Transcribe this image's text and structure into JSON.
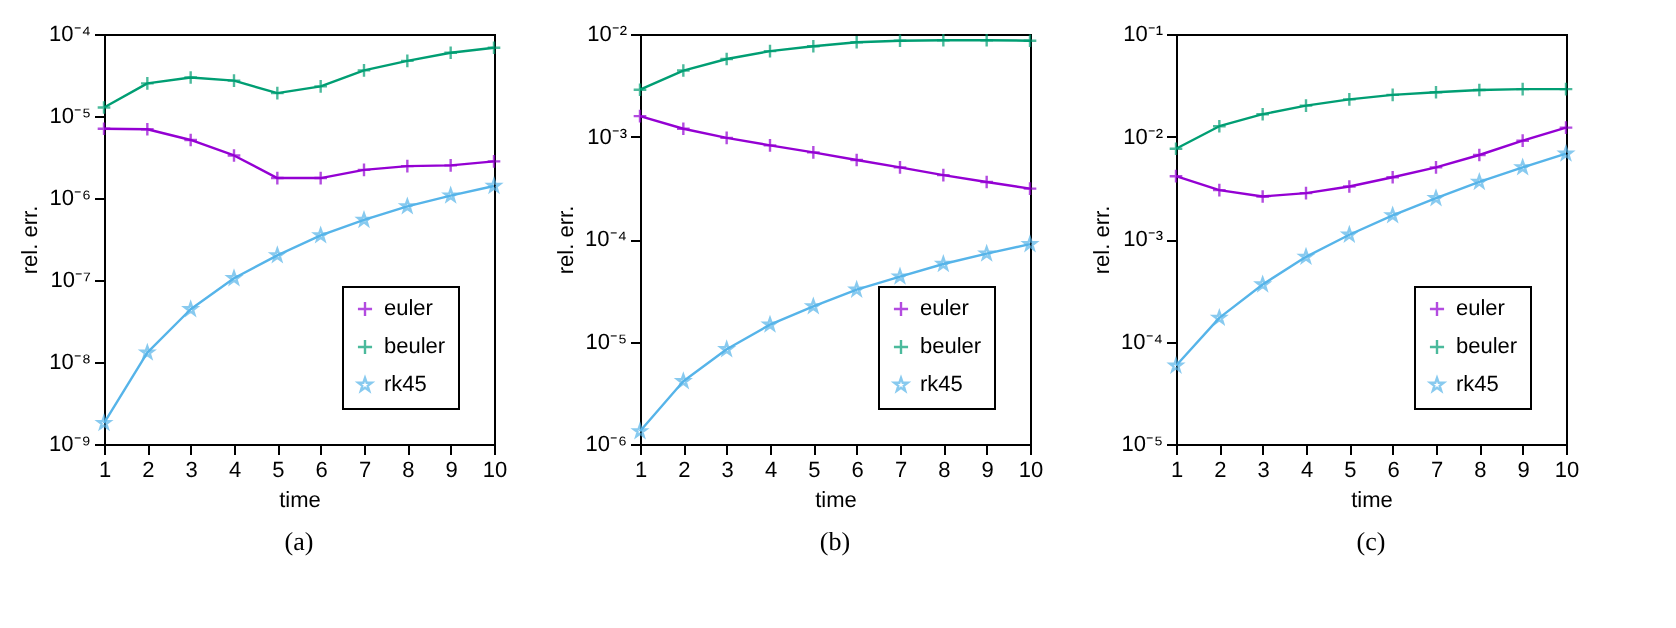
{
  "chart_data": [
    {
      "type": "line",
      "xlabel": "time",
      "ylabel": "rel. err.",
      "log": "y",
      "legend": "bottom right",
      "grid": false,
      "line_style": "solid",
      "annotations": [
        "(a)"
      ],
      "x": [
        1,
        2,
        3,
        4,
        5,
        6,
        7,
        8,
        9,
        10
      ],
      "xlim": [
        1,
        10
      ],
      "xticks": [
        1,
        2,
        3,
        4,
        5,
        6,
        7,
        8,
        9,
        10
      ],
      "ylim": [
        1e-09,
        0.0001
      ],
      "yticks": [
        {
          "value": 1e-09,
          "label": "10⁻⁹"
        },
        {
          "value": 1e-08,
          "label": "10⁻⁸"
        },
        {
          "value": 1e-07,
          "label": "10⁻⁷"
        },
        {
          "value": 1e-06,
          "label": "10⁻⁶"
        },
        {
          "value": 1e-05,
          "label": "10⁻⁵"
        },
        {
          "value": 0.0001,
          "label": "10⁻⁴"
        }
      ],
      "series": [
        {
          "name": "euler",
          "color": "#9400d3",
          "marker": "cross",
          "values": [
            7e-06,
            6.9e-06,
            5.1e-06,
            3.3e-06,
            1.75e-06,
            1.75e-06,
            2.2e-06,
            2.45e-06,
            2.5e-06,
            2.8e-06
          ]
        },
        {
          "name": "beuler",
          "color": "#009e73",
          "marker": "cross",
          "values": [
            1.27e-05,
            2.5e-05,
            2.95e-05,
            2.7e-05,
            1.9e-05,
            2.3e-05,
            3.6e-05,
            4.7e-05,
            5.9e-05,
            6.8e-05
          ]
        },
        {
          "name": "rk45",
          "color": "#56b4e9",
          "marker": "star",
          "values": [
            1.8e-09,
            1.3e-08,
            4.4e-08,
            1.05e-07,
            2e-07,
            3.5e-07,
            5.4e-07,
            7.9e-07,
            1.07e-06,
            1.4e-06
          ]
        }
      ]
    },
    {
      "type": "line",
      "xlabel": "time",
      "ylabel": "rel. err.",
      "log": "y",
      "legend": "bottom right",
      "grid": false,
      "line_style": "solid",
      "annotations": [
        "(b)"
      ],
      "x": [
        1,
        2,
        3,
        4,
        5,
        6,
        7,
        8,
        9,
        10
      ],
      "xlim": [
        1,
        10
      ],
      "xticks": [
        1,
        2,
        3,
        4,
        5,
        6,
        7,
        8,
        9,
        10
      ],
      "ylim": [
        1e-06,
        0.01
      ],
      "yticks": [
        {
          "value": 1e-06,
          "label": "10⁻⁶"
        },
        {
          "value": 1e-05,
          "label": "10⁻⁵"
        },
        {
          "value": 0.0001,
          "label": "10⁻⁴"
        },
        {
          "value": 0.001,
          "label": "10⁻³"
        },
        {
          "value": 0.01,
          "label": "10⁻²"
        }
      ],
      "series": [
        {
          "name": "euler",
          "color": "#9400d3",
          "marker": "cross",
          "values": [
            0.00158,
            0.00119,
            0.00097,
            0.00082,
            0.0007,
            0.00059,
            0.0005,
            0.00042,
            0.00036,
            0.00031
          ]
        },
        {
          "name": "beuler",
          "color": "#009e73",
          "marker": "cross",
          "values": [
            0.00286,
            0.0044,
            0.0057,
            0.0068,
            0.0076,
            0.0083,
            0.0086,
            0.0087,
            0.0087,
            0.0086
          ]
        },
        {
          "name": "rk45",
          "color": "#56b4e9",
          "marker": "star",
          "values": [
            1.33e-06,
            4.1e-06,
            8.4e-06,
            1.46e-05,
            2.2e-05,
            3.2e-05,
            4.3e-05,
            5.7e-05,
            7.2e-05,
            8.9e-05
          ]
        }
      ]
    },
    {
      "type": "line",
      "xlabel": "time",
      "ylabel": "rel. err.",
      "log": "y",
      "legend": "bottom right",
      "grid": false,
      "line_style": "solid",
      "annotations": [
        "(c)"
      ],
      "x": [
        1,
        2,
        3,
        4,
        5,
        6,
        7,
        8,
        9,
        10
      ],
      "xlim": [
        1,
        10
      ],
      "xticks": [
        1,
        2,
        3,
        4,
        5,
        6,
        7,
        8,
        9,
        10
      ],
      "ylim": [
        1e-05,
        0.1
      ],
      "yticks": [
        {
          "value": 1e-05,
          "label": "10⁻⁵"
        },
        {
          "value": 0.0001,
          "label": "10⁻⁴"
        },
        {
          "value": 0.001,
          "label": "10⁻³"
        },
        {
          "value": 0.01,
          "label": "10⁻²"
        },
        {
          "value": 0.1,
          "label": "10⁻¹"
        }
      ],
      "series": [
        {
          "name": "euler",
          "color": "#9400d3",
          "marker": "cross",
          "values": [
            0.0041,
            0.003,
            0.0026,
            0.0028,
            0.00325,
            0.004,
            0.005,
            0.0066,
            0.0091,
            0.0122
          ]
        },
        {
          "name": "beuler",
          "color": "#009e73",
          "marker": "cross",
          "values": [
            0.0076,
            0.0126,
            0.0165,
            0.02,
            0.023,
            0.0255,
            0.027,
            0.0284,
            0.029,
            0.029
          ]
        },
        {
          "name": "rk45",
          "color": "#56b4e9",
          "marker": "star",
          "values": [
            5.8e-05,
            0.00017,
            0.00036,
            0.00067,
            0.0011,
            0.0017,
            0.0025,
            0.0036,
            0.005,
            0.0068
          ]
        }
      ]
    }
  ]
}
